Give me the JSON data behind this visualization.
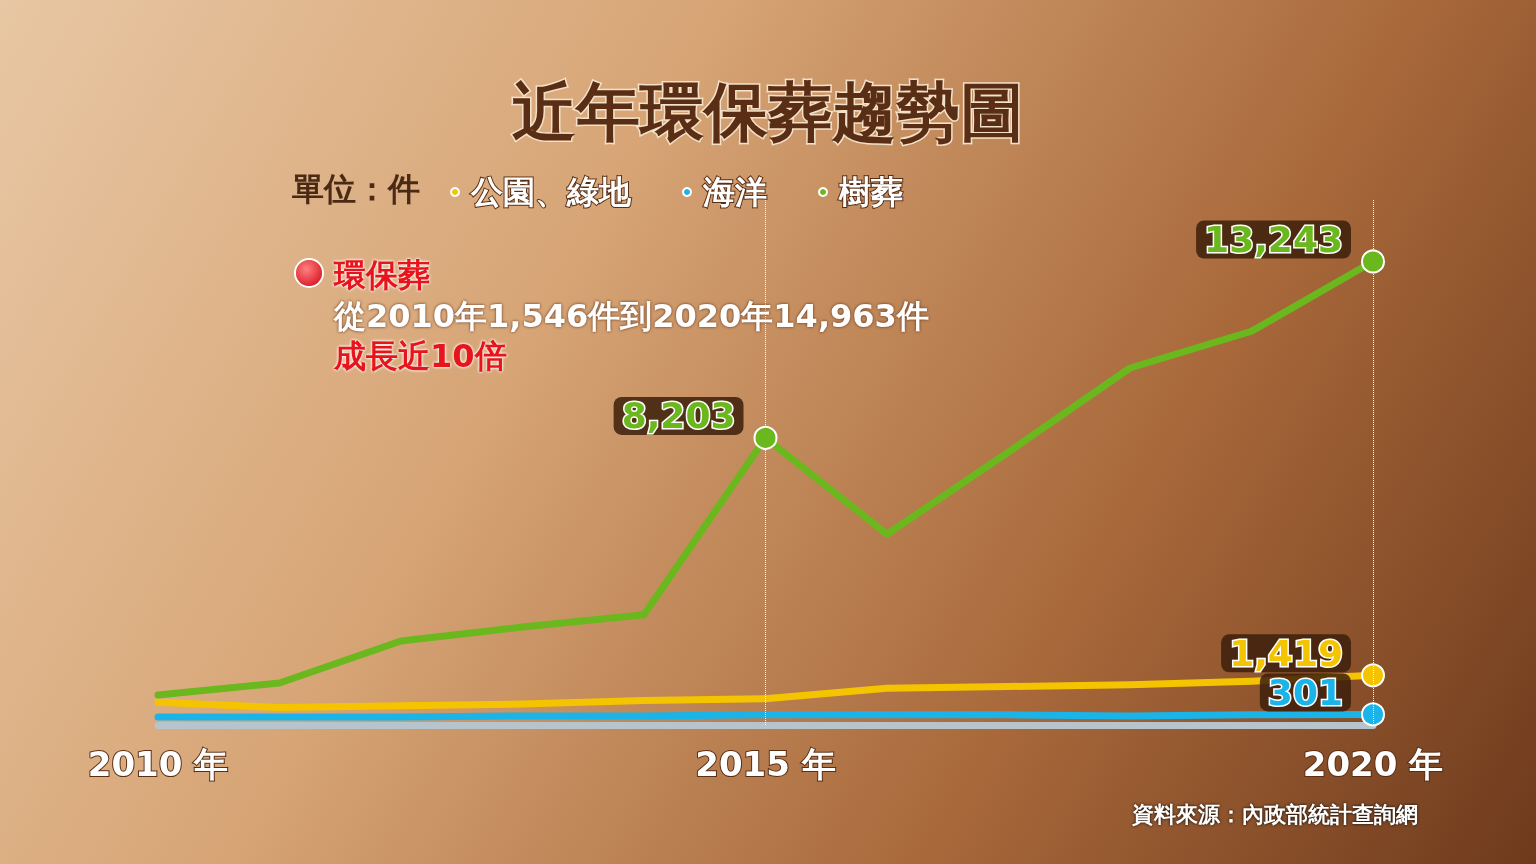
{
  "chart_data": {
    "type": "line",
    "title": "近年環保葬趨勢圖",
    "legend_title": "單位：件",
    "categories": [
      "2010 年",
      null,
      null,
      null,
      null,
      "2015 年",
      null,
      null,
      null,
      null,
      "2020 年"
    ],
    "series": [
      {
        "name": "公園、綠地",
        "color": "#f5c400",
        "values": [
          650,
          500,
          550,
          600,
          700,
          750,
          1050,
          1100,
          1150,
          1250,
          1419
        ],
        "value_labels": [
          null,
          null,
          null,
          null,
          null,
          null,
          null,
          null,
          null,
          null,
          "1,419"
        ]
      },
      {
        "name": "海洋",
        "color": "#1ab4e8",
        "values": [
          230,
          230,
          230,
          260,
          260,
          290,
          290,
          290,
          260,
          290,
          301
        ],
        "value_labels": [
          null,
          null,
          null,
          null,
          null,
          null,
          null,
          null,
          null,
          null,
          "301"
        ]
      },
      {
        "name": "樹葬",
        "color": "#6ab81e",
        "values": [
          860,
          1200,
          2400,
          2800,
          3150,
          8203,
          5450,
          7800,
          10200,
          11250,
          13243
        ],
        "value_labels": [
          null,
          null,
          null,
          null,
          null,
          "8,203",
          null,
          null,
          null,
          null,
          "13,243"
        ]
      }
    ],
    "ref_lines": [
      {
        "axis": "x",
        "value": "2015 年",
        "line_style": "dotted",
        "color": "#ffffff"
      },
      {
        "axis": "x",
        "value": "2020 年",
        "line_style": "dotted",
        "color": "#ffffff"
      }
    ],
    "annotations": [
      "環保葬",
      "從2010年1,546件到2020年14,963件",
      "成長近10倍",
      "資料來源：內政部統計查詢網"
    ],
    "marker": "none",
    "legend": "top",
    "grid": false
  }
}
